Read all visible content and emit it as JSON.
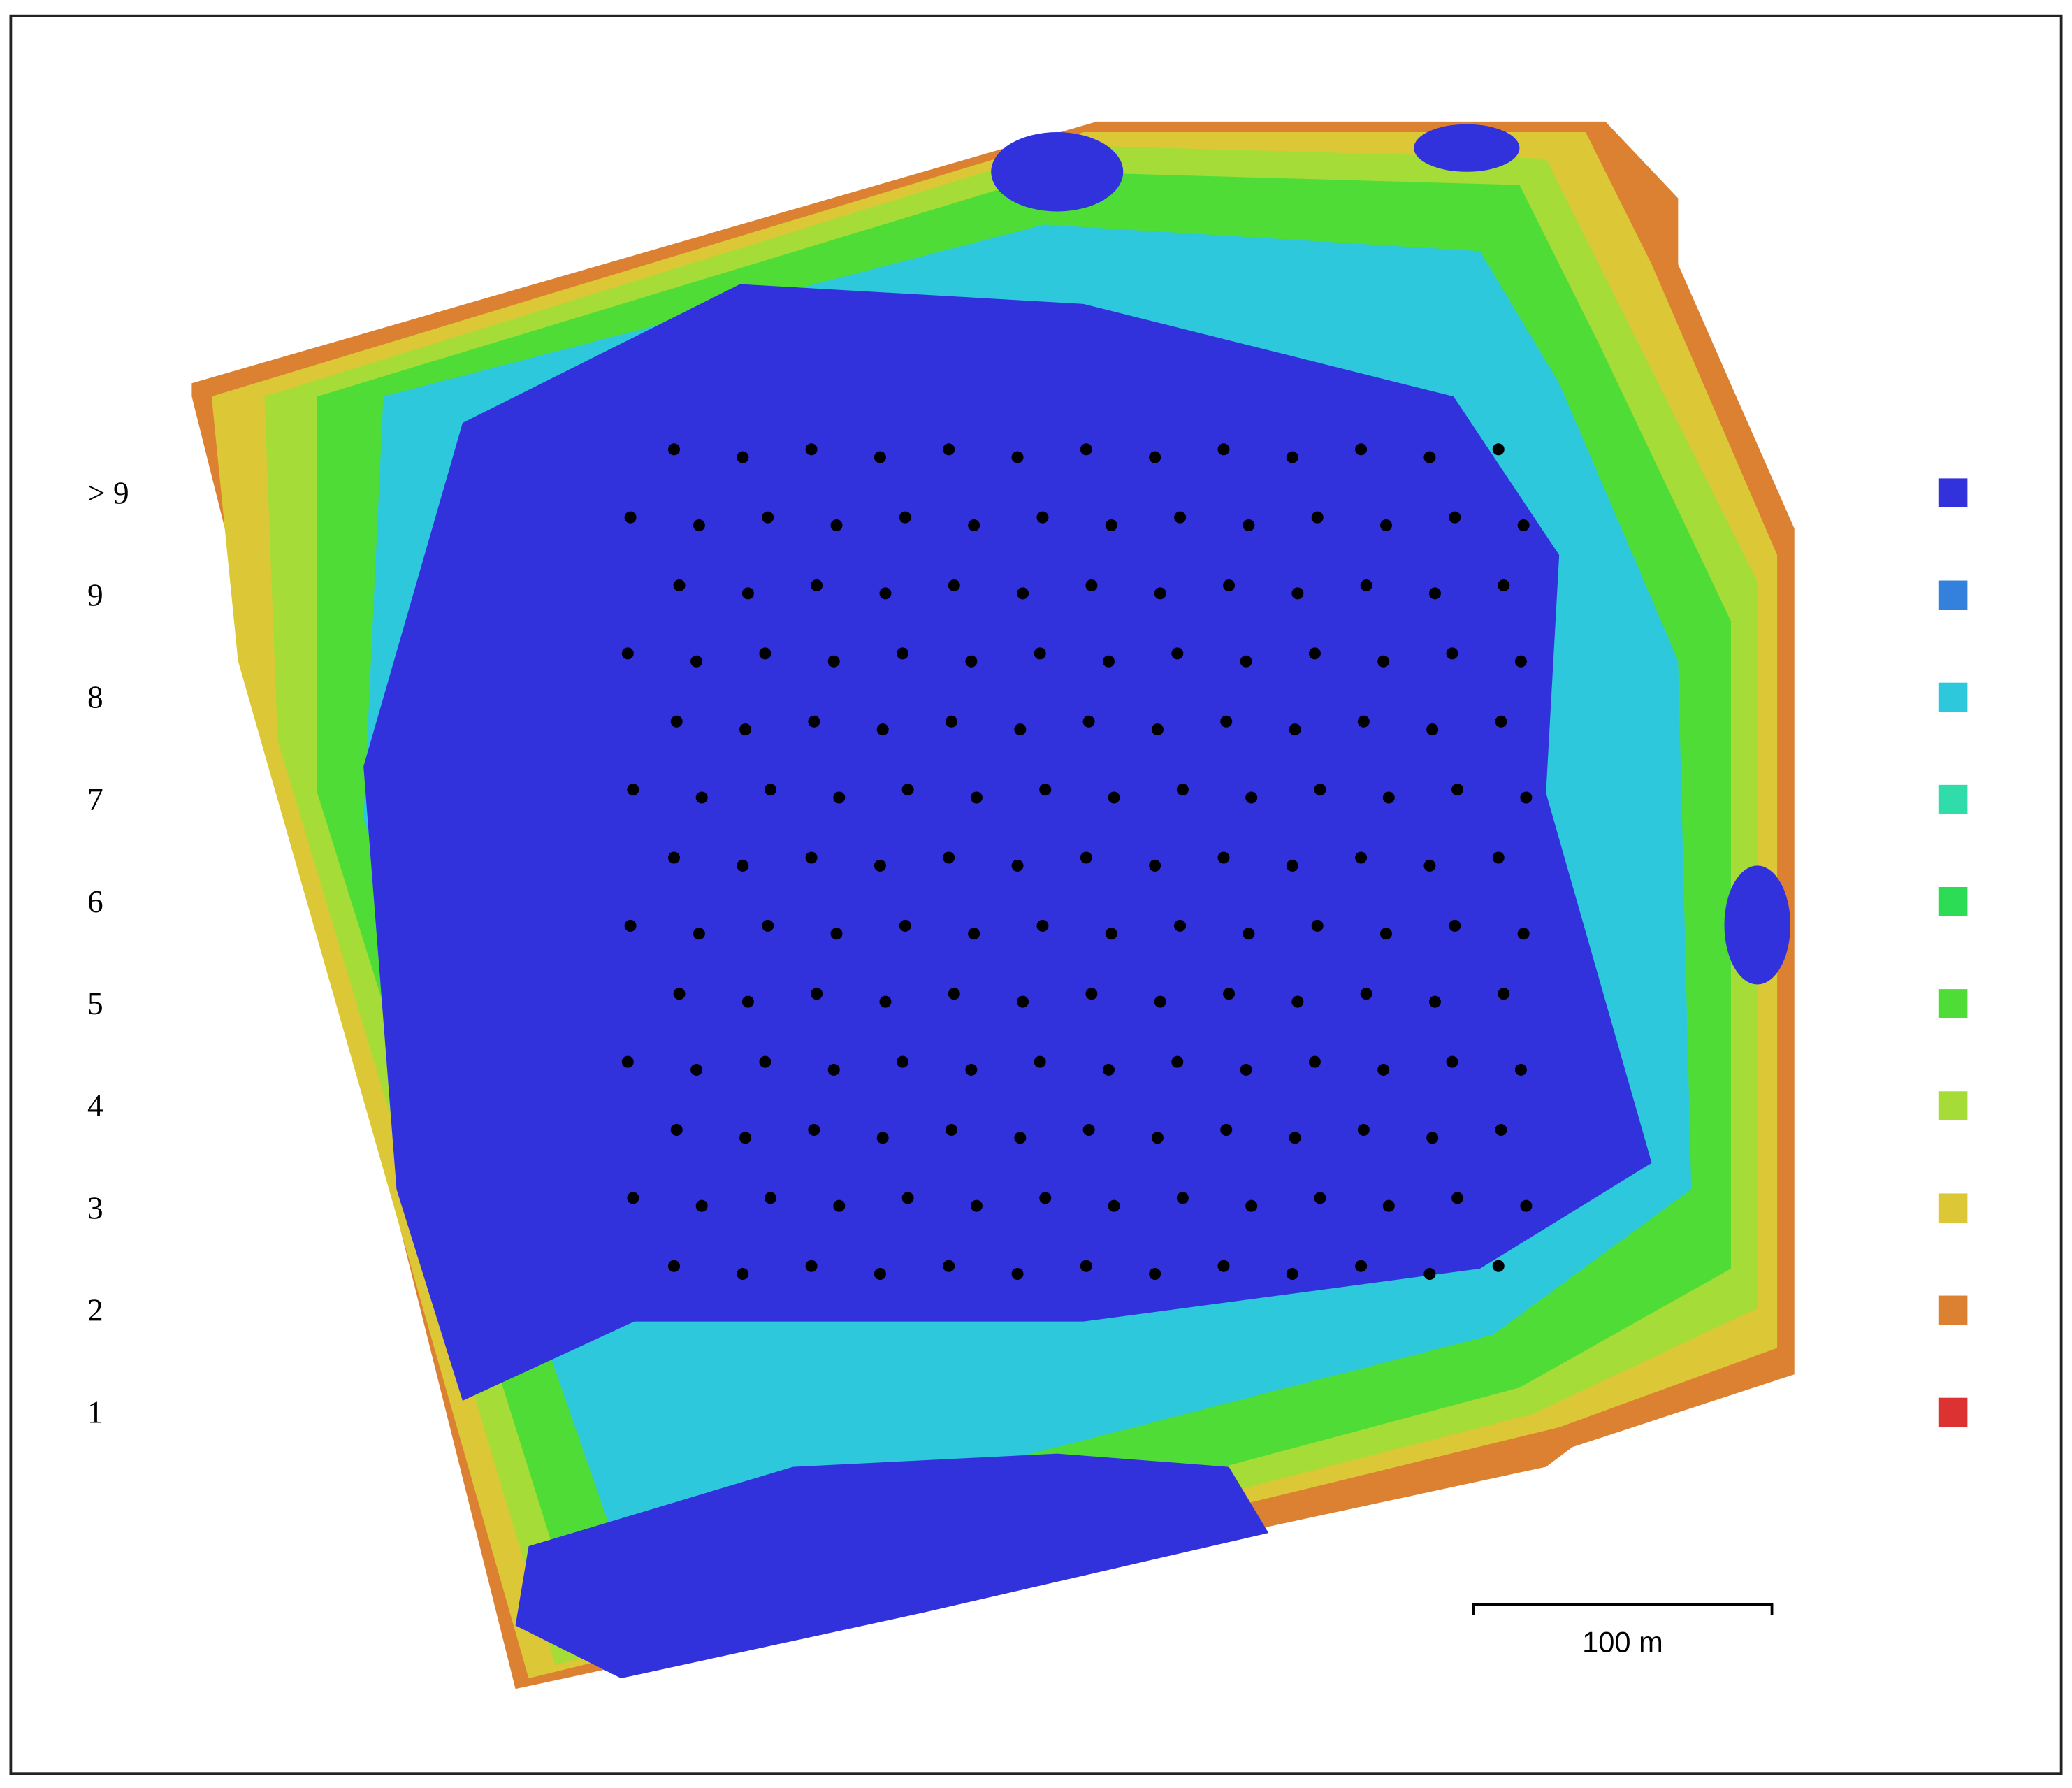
{
  "legend": {
    "items": [
      {
        "label": "> 9",
        "color": "#3232dc"
      },
      {
        "label": "9",
        "color": "#3380dd"
      },
      {
        "label": "8",
        "color": "#2ec8dc"
      },
      {
        "label": "7",
        "color": "#30dcaa"
      },
      {
        "label": "6",
        "color": "#2ddc55"
      },
      {
        "label": "5",
        "color": "#50dc37"
      },
      {
        "label": "4",
        "color": "#a5dc37"
      },
      {
        "label": "3",
        "color": "#dcc837"
      },
      {
        "label": "2",
        "color": "#dc8032"
      },
      {
        "label": "1",
        "color": "#dc3232"
      }
    ]
  },
  "scale_bar": {
    "label": "100 m"
  }
}
